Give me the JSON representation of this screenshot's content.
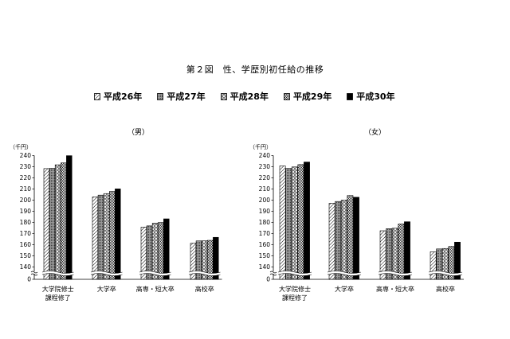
{
  "title": "第２図　性、学歴別初任給の推移",
  "legend": [
    {
      "label": "平成26年",
      "pattern": "diag"
    },
    {
      "label": "平成27年",
      "pattern": "dots-grey"
    },
    {
      "label": "平成28年",
      "pattern": "diamond"
    },
    {
      "label": "平成29年",
      "pattern": "checker"
    },
    {
      "label": "平成30年",
      "pattern": "solid"
    }
  ],
  "colors": {
    "solid": "#000000",
    "grey": "#8c8c8c",
    "background": "#ffffff"
  },
  "chart_data": [
    {
      "type": "bar",
      "title": "（男）",
      "ylabel": "（千円）",
      "ylim": [
        0,
        240
      ],
      "yticks_upper": [
        140,
        150,
        160,
        170,
        180,
        190,
        200,
        210,
        220,
        230,
        240
      ],
      "yticks_lower": [
        0
      ],
      "axis_break": [
        0,
        135
      ],
      "categories": [
        "大学院修士\n課程修了",
        "大学卒",
        "高専・短大卒",
        "高校卒"
      ],
      "series": [
        {
          "name": "平成26年",
          "values": [
            228.3,
            202.9,
            175.8,
            161.3
          ]
        },
        {
          "name": "平成27年",
          "values": [
            228.5,
            204.5,
            176.9,
            163.4
          ]
        },
        {
          "name": "平成28年",
          "values": [
            231.7,
            205.9,
            179.3,
            163.5
          ]
        },
        {
          "name": "平成29年",
          "values": [
            233.4,
            207.8,
            179.9,
            163.9
          ]
        },
        {
          "name": "平成30年",
          "values": [
            239.9,
            210.1,
            183.2,
            166.6
          ]
        }
      ]
    },
    {
      "type": "bar",
      "title": "（女）",
      "ylabel": "（千円）",
      "ylim": [
        0,
        240
      ],
      "yticks_upper": [
        140,
        150,
        160,
        170,
        180,
        190,
        200,
        210,
        220,
        230,
        240
      ],
      "yticks_lower": [
        0
      ],
      "axis_break": [
        0,
        135
      ],
      "categories": [
        "大学院修士\n課程修了",
        "大学卒",
        "高専・短大卒",
        "高校卒"
      ],
      "series": [
        {
          "name": "平成26年",
          "values": [
            230.7,
            197.2,
            172.5,
            153.6
          ]
        },
        {
          "name": "平成27年",
          "values": [
            228.4,
            198.8,
            174.4,
            156.2
          ]
        },
        {
          "name": "平成28年",
          "values": [
            229.8,
            200.0,
            174.8,
            156.6
          ]
        },
        {
          "name": "平成29年",
          "values": [
            231.9,
            204.1,
            178.6,
            158.4
          ]
        },
        {
          "name": "平成30年",
          "values": [
            234.2,
            202.6,
            180.6,
            162.3
          ]
        }
      ]
    }
  ]
}
